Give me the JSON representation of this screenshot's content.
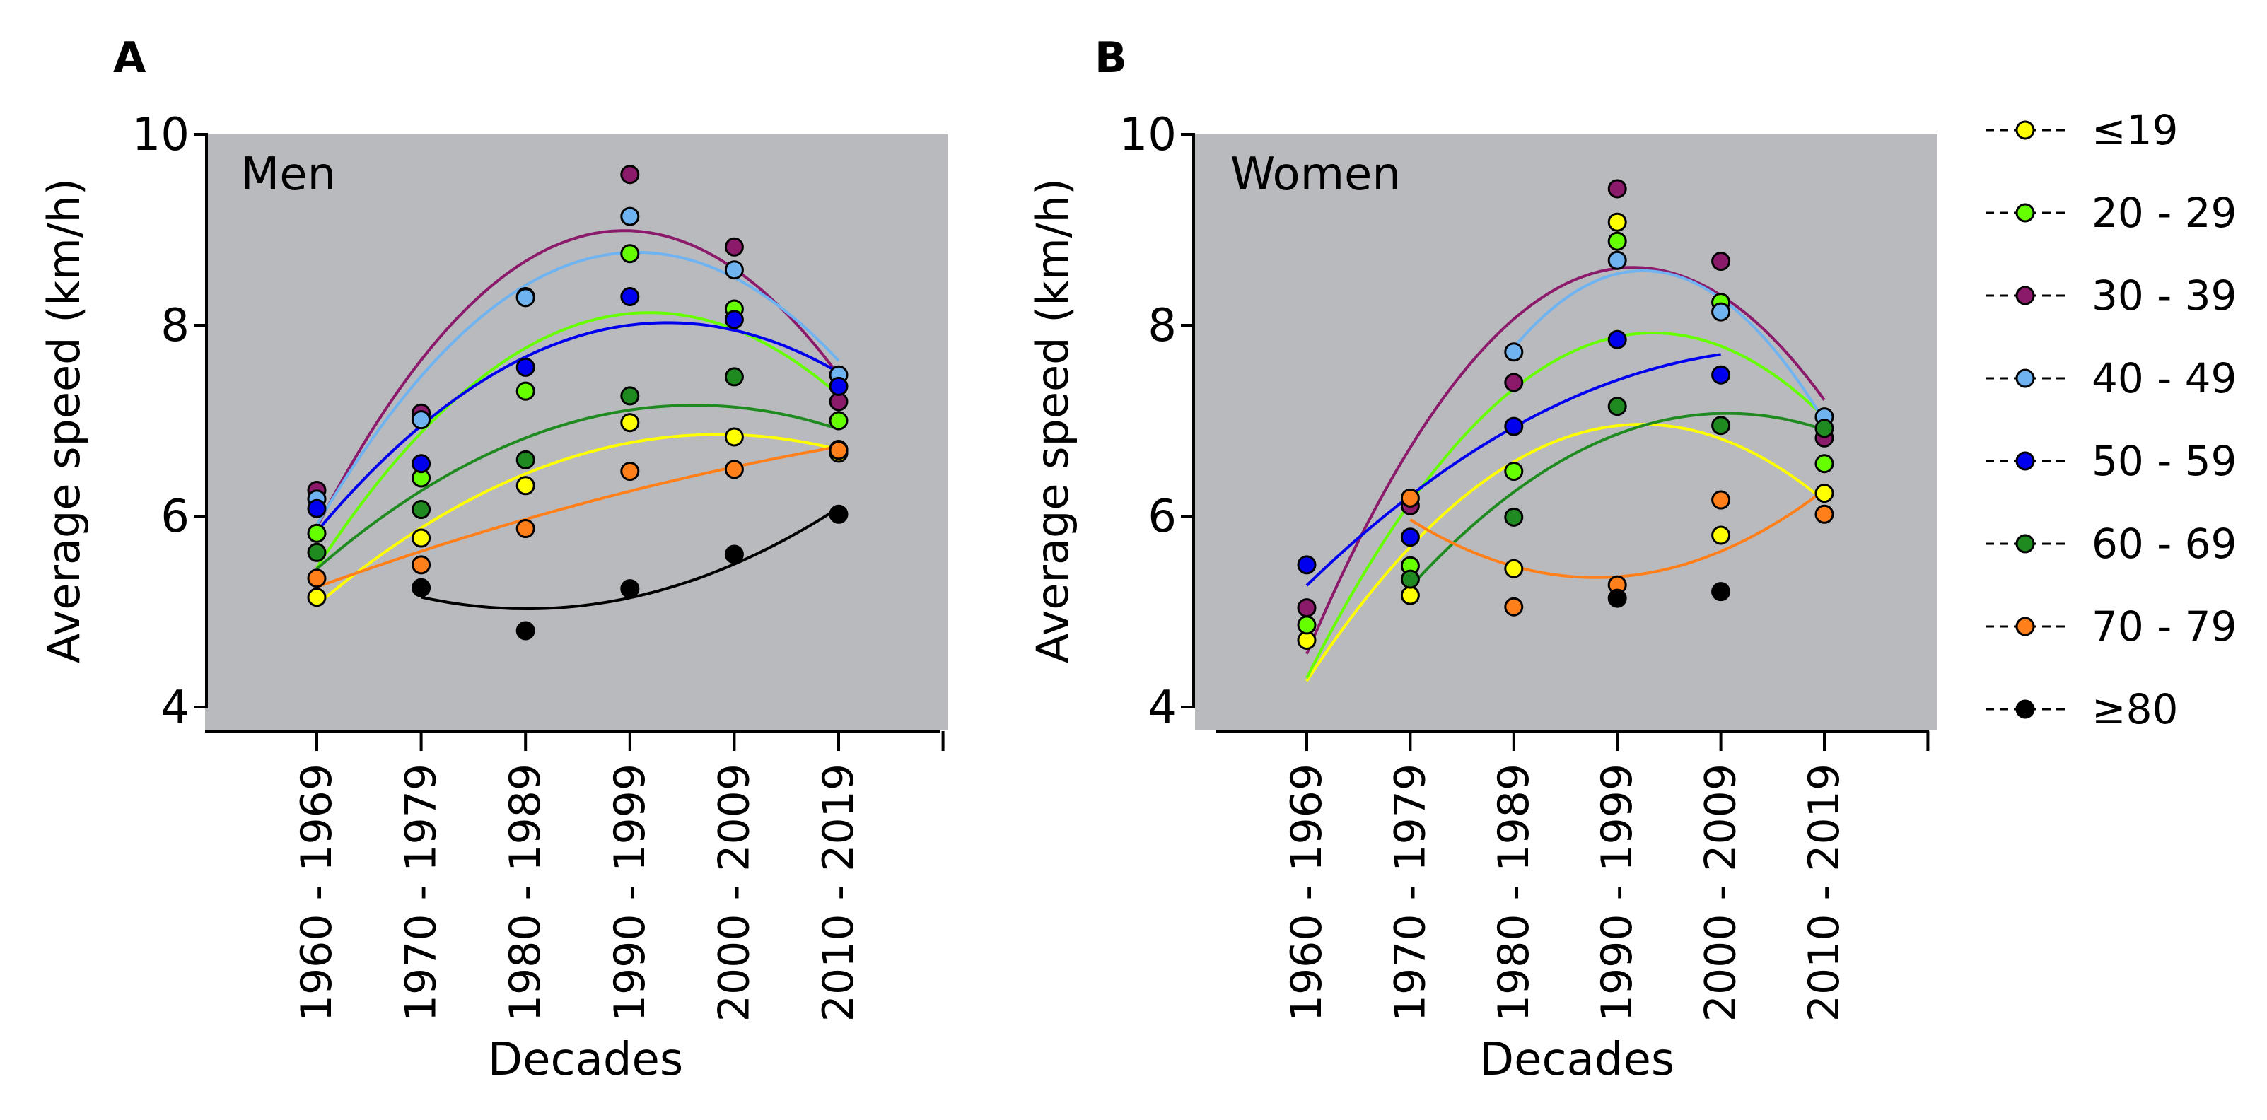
{
  "panels": [
    {
      "letter": "A",
      "label": "Men"
    },
    {
      "letter": "B",
      "label": "Women"
    }
  ],
  "colors": {
    "plot_background": "#b9babe",
    "u19": "#ffff00",
    "20_29": "#66ff00",
    "30_39": "#8b1a6b",
    "40_49": "#6fb3f0",
    "50_59": "#0000ee",
    "60_69": "#1f8a1f",
    "70_79": "#ff7f1a",
    "80plus": "#000000"
  },
  "chart_data": [
    {
      "type": "scatter",
      "panel": "A",
      "annotation": "Men",
      "xlabel": "Decades",
      "ylabel": "Average speed (km/h)",
      "categories": [
        "1960 - 1969",
        "1970 - 1979",
        "1980 - 1989",
        "1990 - 1999",
        "2000 - 2009",
        "2010 - 2019"
      ],
      "ylim": [
        4,
        10
      ],
      "yticks": [
        4,
        6,
        8,
        10
      ],
      "grid": false,
      "legend_position": "right",
      "trendlines": "quadratic fit per series",
      "series": [
        {
          "name": "≤19",
          "color_key": "u19",
          "values": [
            5.15,
            5.77,
            6.32,
            6.98,
            6.83,
            6.66
          ]
        },
        {
          "name": "20 - 29",
          "color_key": "20_29",
          "values": [
            5.82,
            6.4,
            7.31,
            8.75,
            8.17,
            7.0
          ]
        },
        {
          "name": "30 - 39",
          "color_key": "30_39",
          "values": [
            6.27,
            7.08,
            8.3,
            9.58,
            8.82,
            7.2
          ]
        },
        {
          "name": "40 - 49",
          "color_key": "40_49",
          "values": [
            6.18,
            7.01,
            8.29,
            9.14,
            8.58,
            7.48
          ]
        },
        {
          "name": "50 - 59",
          "color_key": "50_59",
          "values": [
            6.08,
            6.55,
            7.56,
            8.3,
            8.06,
            7.36
          ]
        },
        {
          "name": "60 - 69",
          "color_key": "60_69",
          "values": [
            5.62,
            6.07,
            6.59,
            7.26,
            7.46,
            6.7
          ]
        },
        {
          "name": "70 - 79",
          "color_key": "70_79",
          "values": [
            5.35,
            5.49,
            5.87,
            6.47,
            6.49,
            6.69
          ]
        },
        {
          "name": "≥80",
          "color_key": "80plus",
          "values": [
            null,
            5.25,
            4.8,
            5.24,
            5.6,
            6.02
          ]
        }
      ]
    },
    {
      "type": "scatter",
      "panel": "B",
      "annotation": "Women",
      "xlabel": "Decades",
      "ylabel": "Average speed (km/h)",
      "categories": [
        "1960 - 1969",
        "1970 - 1979",
        "1980 - 1989",
        "1990 - 1999",
        "2000 - 2009",
        "2010 - 2019"
      ],
      "ylim": [
        4,
        10
      ],
      "yticks": [
        4,
        6,
        8,
        10
      ],
      "grid": false,
      "legend_position": "right",
      "trendlines": "quadratic fit per series",
      "series": [
        {
          "name": "≤19",
          "color_key": "u19",
          "values": [
            4.7,
            5.17,
            5.45,
            9.08,
            5.8,
            6.24
          ]
        },
        {
          "name": "20 - 29",
          "color_key": "20_29",
          "values": [
            4.86,
            5.48,
            6.47,
            8.88,
            8.24,
            6.55
          ]
        },
        {
          "name": "30 - 39",
          "color_key": "30_39",
          "values": [
            5.04,
            6.11,
            7.4,
            9.43,
            8.67,
            6.82
          ]
        },
        {
          "name": "40 - 49",
          "color_key": "40_49",
          "values": [
            null,
            null,
            7.72,
            8.68,
            8.14,
            7.04
          ]
        },
        {
          "name": "50 - 59",
          "color_key": "50_59",
          "values": [
            5.49,
            5.78,
            6.94,
            7.85,
            7.48,
            null
          ]
        },
        {
          "name": "60 - 69",
          "color_key": "60_69",
          "values": [
            null,
            5.34,
            5.99,
            7.15,
            6.95,
            6.92
          ]
        },
        {
          "name": "70 - 79",
          "color_key": "70_79",
          "values": [
            null,
            6.19,
            5.05,
            5.28,
            6.17,
            6.02
          ]
        },
        {
          "name": "≥80",
          "color_key": "80plus",
          "values": [
            null,
            null,
            null,
            5.14,
            5.21,
            null
          ]
        }
      ]
    }
  ],
  "legend": [
    {
      "label": "≤19",
      "color_key": "u19"
    },
    {
      "label": "20 - 29",
      "color_key": "20_29"
    },
    {
      "label": "30 - 39",
      "color_key": "30_39"
    },
    {
      "label": "40 - 49",
      "color_key": "40_49"
    },
    {
      "label": "50 - 59",
      "color_key": "50_59"
    },
    {
      "label": "60 - 69",
      "color_key": "60_69"
    },
    {
      "label": "70 - 79",
      "color_key": "70_79"
    },
    {
      "label": "≥80",
      "color_key": "80plus"
    }
  ]
}
